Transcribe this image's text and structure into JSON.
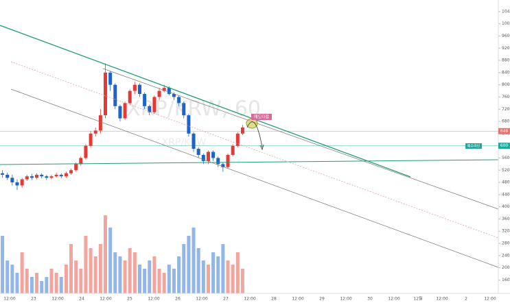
{
  "chart_data": {
    "type": "candlestick",
    "title": "XRP/KRW, 60",
    "subtitle": "XRP/KRW",
    "open": [
      510,
      505,
      495,
      480,
      470,
      490,
      500,
      495,
      505,
      500,
      495,
      500,
      505,
      500,
      510,
      520,
      540,
      560,
      600,
      640,
      650,
      700,
      840,
      800,
      730,
      690,
      740,
      780,
      800,
      770,
      730,
      710,
      760,
      780,
      790,
      770,
      760,
      740,
      700,
      640,
      590,
      570,
      550,
      580,
      560,
      540,
      530,
      570,
      600,
      640
    ],
    "high": [
      520,
      512,
      505,
      490,
      495,
      505,
      508,
      510,
      510,
      505,
      505,
      512,
      510,
      515,
      525,
      545,
      565,
      605,
      648,
      660,
      720,
      870,
      845,
      805,
      735,
      745,
      785,
      810,
      805,
      775,
      735,
      765,
      790,
      800,
      795,
      775,
      765,
      745,
      705,
      645,
      595,
      575,
      585,
      585,
      565,
      545,
      575,
      605,
      645,
      668
    ],
    "low": [
      495,
      488,
      470,
      455,
      462,
      485,
      488,
      490,
      493,
      488,
      490,
      495,
      493,
      495,
      505,
      515,
      535,
      555,
      595,
      630,
      640,
      690,
      780,
      720,
      680,
      685,
      735,
      770,
      760,
      720,
      700,
      705,
      750,
      775,
      765,
      750,
      730,
      690,
      630,
      580,
      560,
      540,
      540,
      550,
      530,
      515,
      525,
      565,
      595,
      635
    ],
    "close": [
      505,
      495,
      480,
      470,
      490,
      500,
      495,
      505,
      500,
      495,
      500,
      505,
      500,
      510,
      520,
      540,
      560,
      600,
      640,
      650,
      700,
      840,
      800,
      730,
      690,
      740,
      780,
      800,
      770,
      730,
      710,
      760,
      780,
      790,
      770,
      760,
      740,
      700,
      640,
      590,
      570,
      550,
      580,
      560,
      540,
      530,
      570,
      600,
      640,
      660
    ],
    "volume": [
      70,
      40,
      35,
      25,
      50,
      30,
      20,
      25,
      15,
      20,
      30,
      25,
      20,
      35,
      60,
      40,
      30,
      70,
      55,
      45,
      60,
      95,
      80,
      50,
      45,
      40,
      55,
      50,
      35,
      30,
      40,
      45,
      30,
      25,
      35,
      30,
      45,
      60,
      70,
      80,
      55,
      40,
      35,
      50,
      45,
      60,
      40,
      35,
      50,
      30
    ],
    "up_color": "#e53935",
    "down_color": "#1e63c8",
    "volume_up_color": "#f2a59f",
    "volume_down_color": "#93b6e8",
    "ylim": [
      116,
      1078
    ],
    "volume_ylim": [
      0,
      100
    ],
    "yticks": [
      1040,
      1000,
      960,
      920,
      880,
      840,
      800,
      760,
      720,
      680,
      640,
      600,
      560,
      520,
      480,
      440,
      400,
      360,
      320,
      280,
      240,
      200,
      160
    ],
    "xtick_labels": [
      "12:00",
      "23",
      "12:00",
      "24",
      "12:00",
      "25",
      "12:00",
      "26",
      "12:00",
      "27",
      "12:00",
      "28",
      "12:00",
      "29",
      "12:00",
      "30",
      "12:00",
      "12월",
      "12:00",
      "2",
      "12:00"
    ],
    "price_lines": [
      {
        "value": 648,
        "color": "#e57373"
      },
      {
        "value": 600,
        "color": "#26a69a"
      }
    ],
    "annotations": [
      "매도타점",
      "매수라인"
    ]
  }
}
